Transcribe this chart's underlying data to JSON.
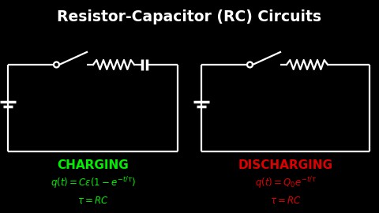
{
  "title": "Resistor-Capacitor (RC) Circuits",
  "title_color": "#ffffff",
  "bg_color": "#000000",
  "charging_label": "CHARGING",
  "charging_color": "#00ee00",
  "discharging_label": "DISCHARGING",
  "discharging_color": "#dd0000",
  "charging_eq": "$q(t) = C\\varepsilon\\left(1 - e^{-t/\\tau}\\right)$",
  "charging_tau": "$\\tau = RC$",
  "discharging_eq": "$q(t) = Q_0 e^{-t/\\tau}$",
  "discharging_tau": "$\\tau = RC$",
  "xlim": [
    0,
    480
  ],
  "ylim": [
    0,
    270
  ]
}
